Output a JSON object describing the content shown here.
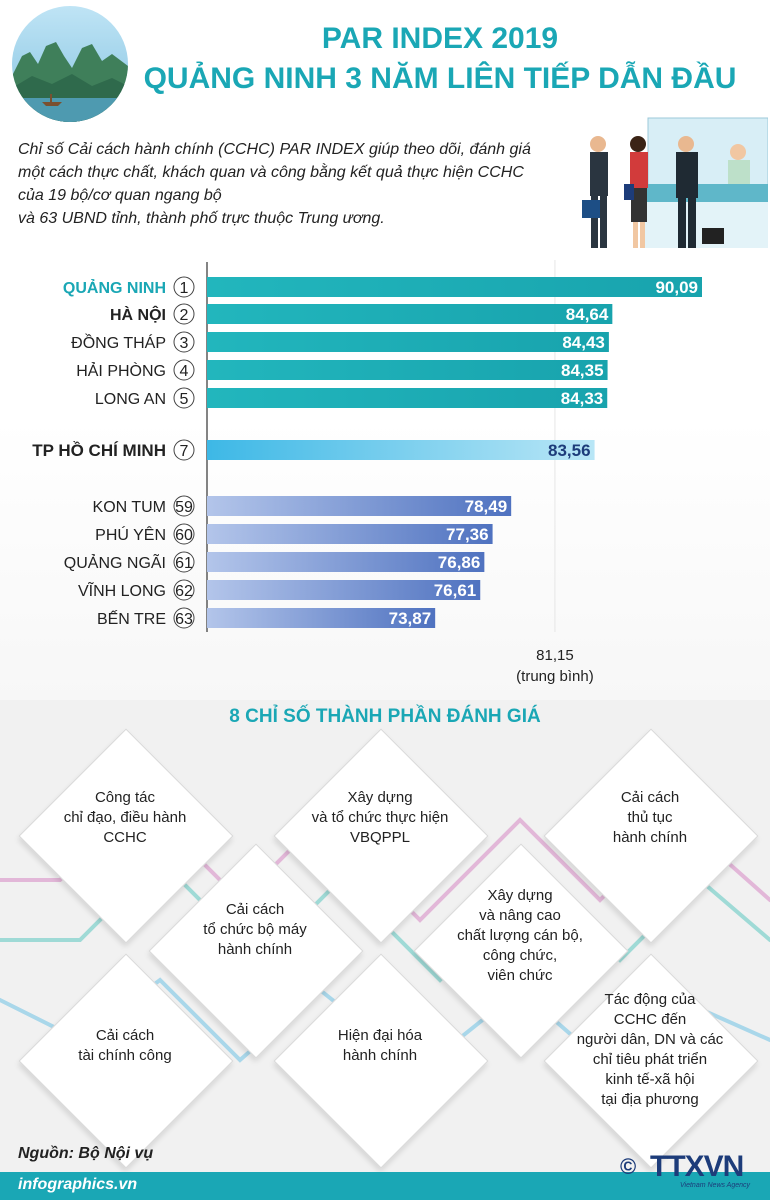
{
  "header": {
    "title_line1": "PAR INDEX 2019",
    "title_line2": "QUẢNG NINH 3 NĂM LIÊN TIẾP DẪN ĐẦU",
    "photo_icon": "ha-long-bay-photo",
    "illustration_icon": "office-counter-people-illustration"
  },
  "intro": {
    "line1": "Chỉ số Cải cách hành chính (CCHC) PAR INDEX giúp theo dõi, đánh giá",
    "line2": "một cách thực chất, khách quan và công bằng kết quả thực hiện CCHC",
    "line3": "của 19 bộ/cơ quan ngang bộ",
    "line4": "và 63 UBND tỉnh, thành phố trực thuộc Trung ương."
  },
  "chart_data": {
    "type": "bar",
    "orientation": "horizontal",
    "categories": [
      "QUẢNG NINH",
      "HÀ NỘI",
      "ĐỒNG THÁP",
      "HẢI PHÒNG",
      "LONG AN",
      "TP HỒ CHÍ MINH",
      "KON TUM",
      "PHÚ YÊN",
      "QUẢNG NGÃI",
      "VĨNH LONG",
      "BẾN TRE"
    ],
    "ranks": [
      "1",
      "2",
      "3",
      "4",
      "5",
      "7",
      "59",
      "60",
      "61",
      "62",
      "63"
    ],
    "values": [
      90.09,
      84.64,
      84.43,
      84.35,
      84.33,
      83.56,
      78.49,
      77.36,
      76.86,
      76.61,
      73.87
    ],
    "value_labels": [
      "90,09",
      "84,64",
      "84,43",
      "84,35",
      "84,33",
      "83,56",
      "78,49",
      "77,36",
      "76,86",
      "76,61",
      "73,87"
    ],
    "groups": [
      "top",
      "top",
      "top",
      "top",
      "top",
      "hcm",
      "bottom",
      "bottom",
      "bottom",
      "bottom",
      "bottom"
    ],
    "highlight": {
      "QUẢNG NINH": "#1aa7b5",
      "HÀ NỘI": "bold"
    },
    "colors": {
      "top": "#1ab0b8",
      "hcm": "#7fd0ec",
      "bottom": "#5c7fc6"
    },
    "average": {
      "value": 81.15,
      "label": "81,15",
      "sublabel": "(trung bình)"
    },
    "xlim": [
      60,
      92
    ],
    "grid": false
  },
  "components": {
    "title": "8 CHỈ SỐ THÀNH PHẦN ĐÁNH GIÁ",
    "items": [
      {
        "lines": [
          "Công tác",
          "chỉ đạo, điều hành",
          "CCHC"
        ]
      },
      {
        "lines": [
          "Xây dựng",
          "và tổ chức thực hiện",
          "VBQPPL"
        ]
      },
      {
        "lines": [
          "Cải cách",
          "thủ tục",
          "hành chính"
        ]
      },
      {
        "lines": [
          "Cải cách",
          "tổ chức bộ máy",
          "hành chính"
        ]
      },
      {
        "lines": [
          "Xây dựng",
          "và nâng cao",
          "chất lượng cán bộ,",
          "công chức,",
          "viên chức"
        ]
      },
      {
        "lines": [
          "Cải cách",
          "tài chính công"
        ]
      },
      {
        "lines": [
          "Hiện đại hóa",
          "hành chính"
        ]
      },
      {
        "lines": [
          "Tác động của",
          "CCHC đến",
          "người dân, DN và các",
          "chỉ tiêu phát triển",
          "kinh tế-xã hội",
          "tại địa phương"
        ]
      }
    ]
  },
  "footer": {
    "source": "Nguồn: Bộ Nội vụ",
    "site": "infographics.vn",
    "logo_copyright": "©",
    "logo_name": "TTXVN",
    "logo_sub": "Vietnam News Agency"
  }
}
